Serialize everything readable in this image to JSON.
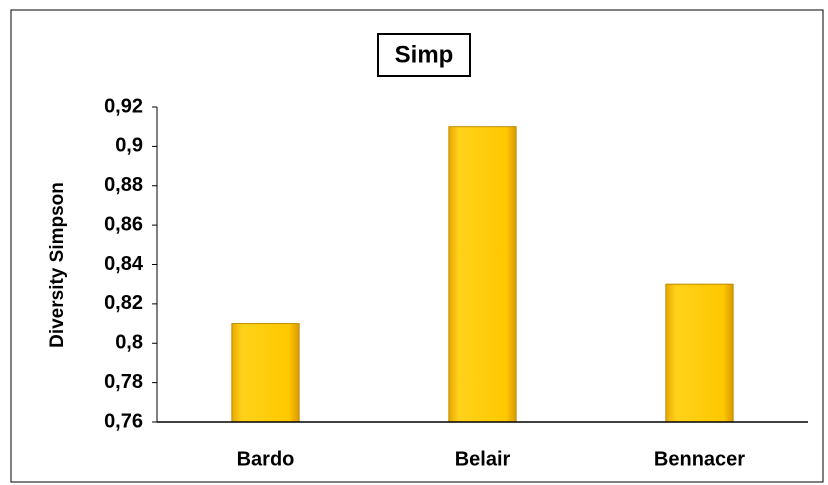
{
  "chart_data": {
    "type": "bar",
    "title": "Simp",
    "y_label": "Diversity Simpson",
    "categories": [
      "Bardo",
      "Belair",
      "Bennacer"
    ],
    "values": [
      0.81,
      0.91,
      0.83
    ],
    "color": "#f5c400",
    "ylim": [
      0.76,
      0.92
    ],
    "yticks": [
      {
        "value": 0.76,
        "label": "0,76"
      },
      {
        "value": 0.78,
        "label": "0,78"
      },
      {
        "value": 0.8,
        "label": "0,8"
      },
      {
        "value": 0.82,
        "label": "0,82"
      },
      {
        "value": 0.84,
        "label": "0,84"
      },
      {
        "value": 0.86,
        "label": "0,86"
      },
      {
        "value": 0.88,
        "label": "0,88"
      },
      {
        "value": 0.9,
        "label": "0,9"
      },
      {
        "value": 0.92,
        "label": "0,92"
      }
    ],
    "grid": false
  }
}
